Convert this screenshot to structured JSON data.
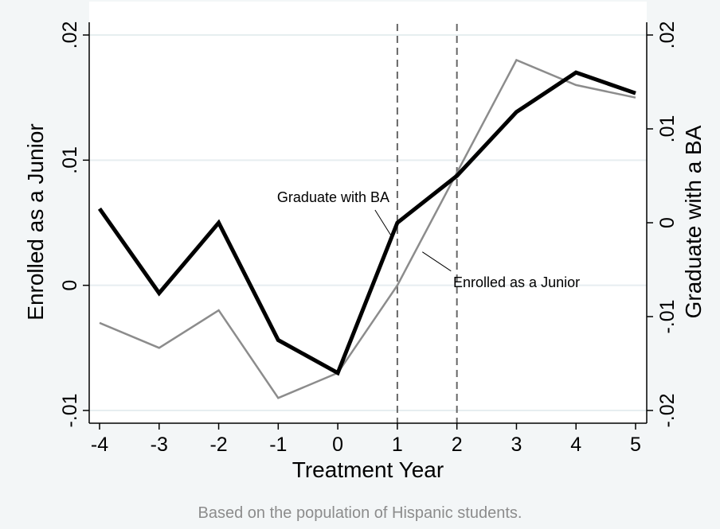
{
  "chart_data": {
    "type": "line",
    "xlabel": "Treatment Year",
    "ylabel_left": "Enrolled as a Junior",
    "ylabel_right": "Graduate with a BA",
    "note": "Based on the population of Hispanic students.",
    "x": [
      -4,
      -3,
      -2,
      -1,
      0,
      1,
      2,
      3,
      4,
      5
    ],
    "xticks": [
      "-4",
      "-3",
      "-2",
      "-1",
      "0",
      "1",
      "2",
      "3",
      "4",
      "5"
    ],
    "xlim": [
      -4,
      5
    ],
    "ylim_left": [
      -0.01,
      0.02
    ],
    "ylim_right": [
      -0.02,
      0.02
    ],
    "yticks_left": [
      {
        "value": -0.01,
        "label": "-.01"
      },
      {
        "value": 0,
        "label": "0"
      },
      {
        "value": 0.01,
        "label": ".01"
      },
      {
        "value": 0.02,
        "label": ".02"
      }
    ],
    "yticks_right": [
      {
        "value": -0.02,
        "label": "-.02"
      },
      {
        "value": -0.01,
        "label": "-.01"
      },
      {
        "value": 0,
        "label": "0"
      },
      {
        "value": 0.01,
        "label": ".01"
      },
      {
        "value": 0.02,
        "label": ".02"
      }
    ],
    "vlines": [
      1,
      2
    ],
    "grid": true,
    "series": [
      {
        "name": "Enrolled as a Junior",
        "axis": "left",
        "color": "#8c8c8c",
        "values": [
          -0.003,
          -0.005,
          -0.002,
          -0.009,
          -0.007,
          0.0,
          0.009,
          0.018,
          0.016,
          0.015
        ]
      },
      {
        "name": "Graduate with BA",
        "axis": "right",
        "color": "#000000",
        "values": [
          0.0015,
          -0.0075,
          0.0,
          -0.0125,
          -0.016,
          0.0,
          0.005,
          0.0118,
          0.016,
          0.0138
        ]
      }
    ],
    "annotations": [
      {
        "text": "Graduate with BA",
        "series": 1,
        "x": 1
      },
      {
        "text": "Enrolled as a Junior",
        "series": 0,
        "x": 1.5
      }
    ]
  }
}
